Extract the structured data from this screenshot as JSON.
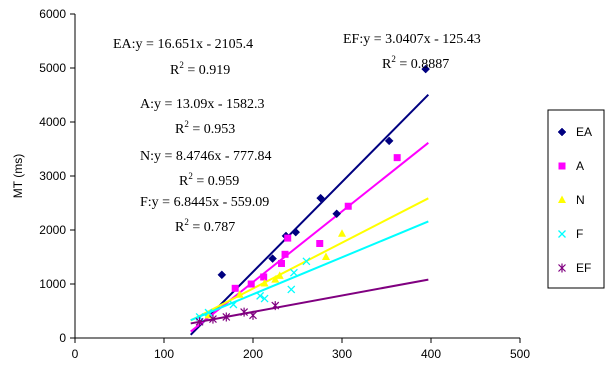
{
  "chart_data": {
    "type": "scatter",
    "title": "",
    "xlabel": "",
    "ylabel": "MT (ms)",
    "xlim": [
      0,
      500
    ],
    "ylim": [
      0,
      6000
    ],
    "xticks": [
      0,
      100,
      200,
      300,
      400,
      500
    ],
    "yticks": [
      0,
      1000,
      2000,
      3000,
      4000,
      5000,
      6000
    ],
    "grid": false,
    "legend_position": "right",
    "series": [
      {
        "name": "EA",
        "marker": "diamond",
        "color": "#000080",
        "points": [
          [
            165,
            1170
          ],
          [
            222,
            1470
          ],
          [
            237,
            1890
          ],
          [
            248,
            1960
          ],
          [
            276,
            2590
          ],
          [
            294,
            2300
          ],
          [
            353,
            3650
          ],
          [
            394,
            4980
          ]
        ],
        "trend": {
          "slope": 16.651,
          "intercept": -2105.4,
          "x_range": [
            130,
            397
          ]
        },
        "equation": "EA:y = 16.651x - 2105.4",
        "r2_value": "= 0.919"
      },
      {
        "name": "A",
        "marker": "square",
        "color": "#ff00ff",
        "points": [
          [
            180,
            920
          ],
          [
            198,
            1000
          ],
          [
            212,
            1130
          ],
          [
            232,
            1380
          ],
          [
            236,
            1550
          ],
          [
            239,
            1850
          ],
          [
            275,
            1750
          ],
          [
            307,
            2440
          ],
          [
            362,
            3340
          ]
        ],
        "trend": {
          "slope": 13.09,
          "intercept": -1582.3,
          "x_range": [
            130,
            397
          ]
        },
        "equation": "A:y = 13.09x - 1582.3",
        "r2_value": "= 0.953"
      },
      {
        "name": "N",
        "marker": "triangle",
        "color": "#ffff00",
        "points": [
          [
            150,
            420
          ],
          [
            185,
            800
          ],
          [
            213,
            1010
          ],
          [
            225,
            1080
          ],
          [
            230,
            1150
          ],
          [
            282,
            1500
          ],
          [
            300,
            1930
          ]
        ],
        "trend": {
          "slope": 8.4746,
          "intercept": -777.84,
          "x_range": [
            130,
            397
          ]
        },
        "equation": "N:y = 8.4746x - 777.84",
        "r2_value": "= 0.959"
      },
      {
        "name": "F",
        "marker": "x",
        "color": "#00ffff",
        "points": [
          [
            140,
            390
          ],
          [
            150,
            470
          ],
          [
            178,
            620
          ],
          [
            208,
            780
          ],
          [
            213,
            730
          ],
          [
            243,
            900
          ],
          [
            246,
            1210
          ],
          [
            260,
            1420
          ]
        ],
        "trend": {
          "slope": 6.8445,
          "intercept": -559.09,
          "x_range": [
            130,
            397
          ]
        },
        "equation": "F:y = 6.8445x - 559.09",
        "r2_value": "= 0.787"
      },
      {
        "name": "EF",
        "marker": "star",
        "color": "#800080",
        "points": [
          [
            140,
            300
          ],
          [
            155,
            350
          ],
          [
            170,
            390
          ],
          [
            190,
            480
          ],
          [
            200,
            420
          ],
          [
            225,
            600
          ]
        ],
        "trend": {
          "slope": 3.0407,
          "intercept": -125.43,
          "x_range": [
            130,
            397
          ]
        },
        "equation": "EF:y = 3.0407x - 125.43",
        "r2_value": "= 0.8887"
      }
    ]
  }
}
